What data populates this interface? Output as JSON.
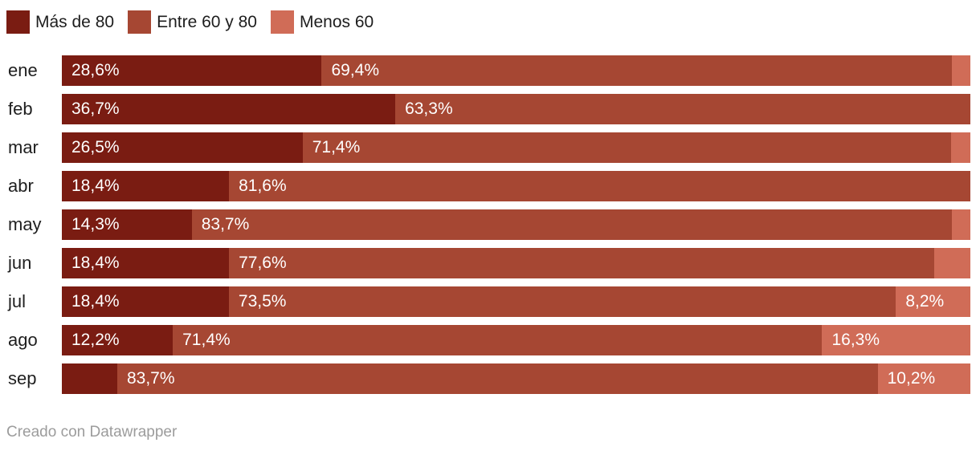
{
  "legend": {
    "items": [
      {
        "label": "Más de 80",
        "color": "#7a1c12"
      },
      {
        "label": "Entre 60 y 80",
        "color": "#a64733"
      },
      {
        "label": "Menos 60",
        "color": "#d06c57"
      }
    ]
  },
  "footer": {
    "credit": "Creado con Datawrapper"
  },
  "chart_data": {
    "type": "bar",
    "stacked": true,
    "orientation": "horizontal",
    "legend_position": "top",
    "value_format": "percent-comma-decimal",
    "xlim": [
      0,
      100
    ],
    "grid": false,
    "categories": [
      "ene",
      "feb",
      "mar",
      "abr",
      "may",
      "jun",
      "jul",
      "ago",
      "sep"
    ],
    "series": [
      {
        "name": "Más de 80",
        "color": "#7a1c12",
        "values": [
          28.6,
          36.7,
          26.5,
          18.4,
          14.3,
          18.4,
          18.4,
          12.2,
          6.1
        ],
        "labels": [
          "28,6%",
          "36,7%",
          "26,5%",
          "18,4%",
          "14,3%",
          "18,4%",
          "18,4%",
          "12,2%",
          ""
        ]
      },
      {
        "name": "Entre 60 y 80",
        "color": "#a64733",
        "values": [
          69.4,
          63.3,
          71.4,
          81.6,
          83.7,
          77.6,
          73.5,
          71.4,
          83.7
        ],
        "labels": [
          "69,4%",
          "63,3%",
          "71,4%",
          "81,6%",
          "83,7%",
          "77,6%",
          "73,5%",
          "71,4%",
          "83,7%"
        ]
      },
      {
        "name": "Menos 60",
        "color": "#d06c57",
        "values": [
          2.0,
          0,
          2.1,
          0,
          2.0,
          4.0,
          8.2,
          16.3,
          10.2
        ],
        "labels": [
          "",
          "",
          "",
          "",
          "",
          "",
          "8,2%",
          "16,3%",
          "10,2%"
        ]
      }
    ]
  }
}
